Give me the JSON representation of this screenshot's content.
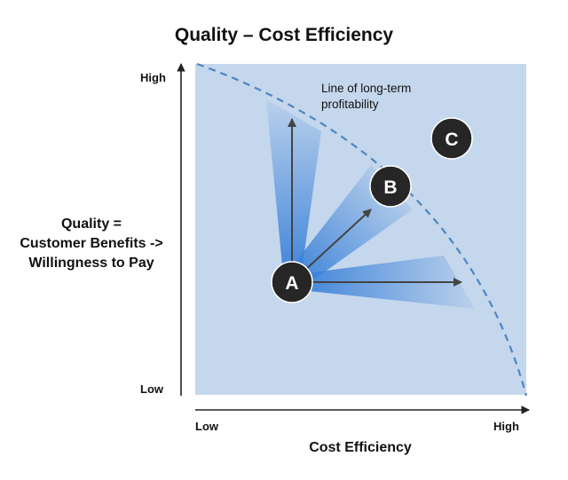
{
  "title": "Quality – Cost Efficiency",
  "y_axis": {
    "label_lines": [
      "Quality =",
      "Customer Benefits ->",
      "Willingness to Pay"
    ],
    "tick_high": "High",
    "tick_low": "Low"
  },
  "x_axis": {
    "label": "Cost Efficiency",
    "tick_low": "Low",
    "tick_high": "High"
  },
  "frontier": {
    "label_lines": [
      "Line of long-term",
      "profitability"
    ]
  },
  "nodes": [
    {
      "id": "A",
      "label": "A"
    },
    {
      "id": "B",
      "label": "B"
    },
    {
      "id": "C",
      "label": "C"
    }
  ],
  "colors": {
    "background_fill": "#c5d7ec",
    "frontier_line": "#4d86c2",
    "cone_blue": "#3b82d9",
    "node_fill": "#262626",
    "arrow": "#444444"
  }
}
